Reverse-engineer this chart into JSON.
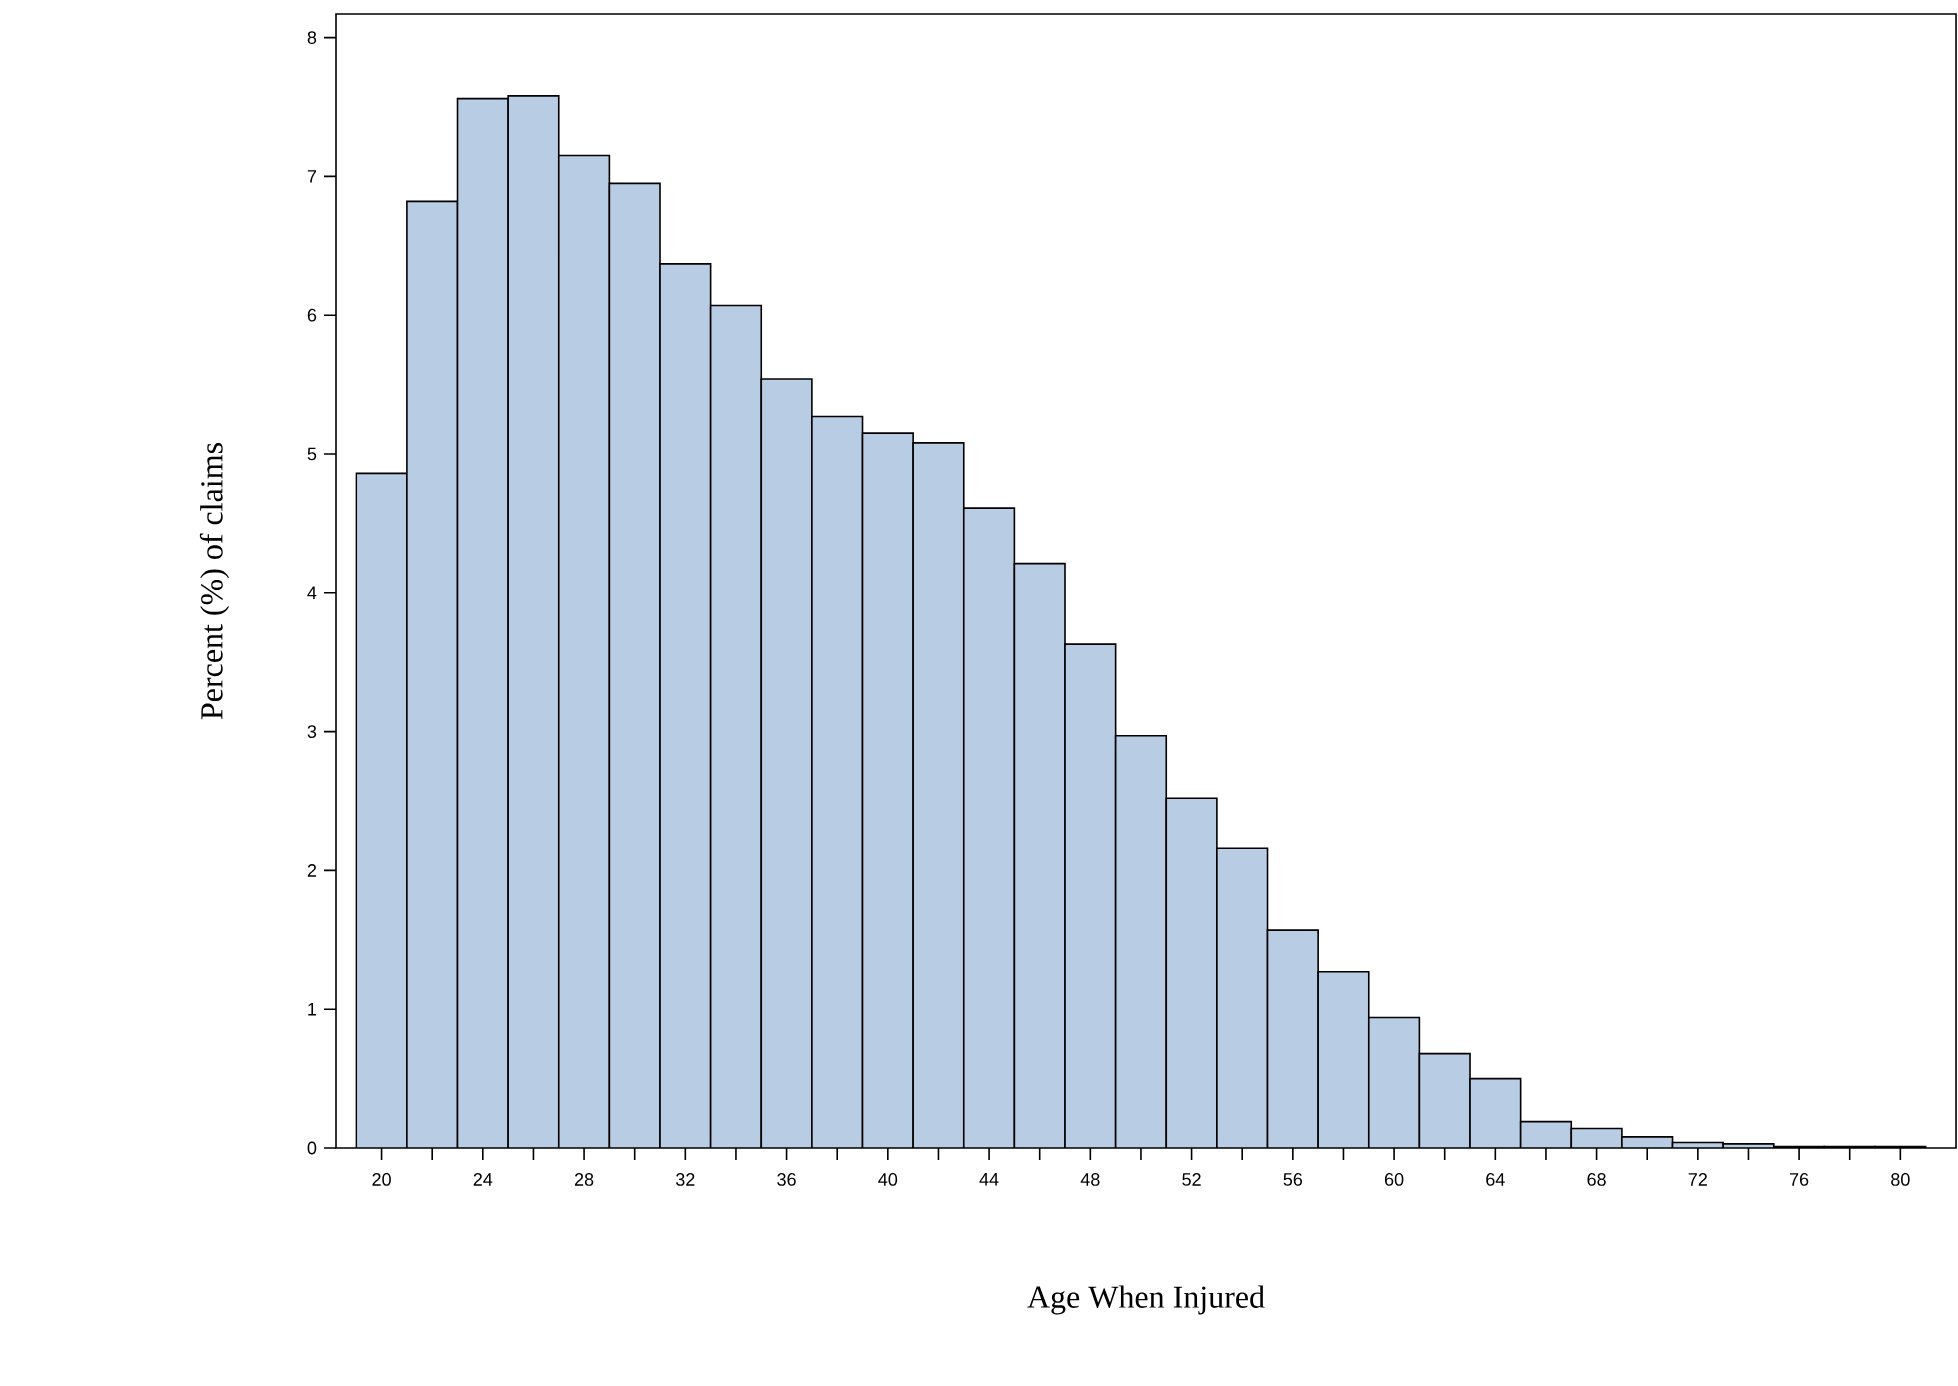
{
  "chart_data": {
    "type": "histogram",
    "xlabel": "Age When Injured",
    "ylabel": "Percent (%) of claims",
    "bins": [
      19,
      21,
      23,
      25,
      27,
      29,
      31,
      33,
      35,
      37,
      39,
      41,
      43,
      45,
      47,
      49,
      51,
      53,
      55,
      57,
      59,
      61,
      63,
      65,
      67,
      69,
      71,
      73,
      75,
      77,
      79,
      81
    ],
    "values": [
      4.86,
      6.82,
      7.56,
      7.58,
      7.15,
      6.95,
      6.37,
      6.07,
      5.54,
      5.27,
      5.15,
      5.08,
      4.61,
      4.21,
      3.63,
      2.97,
      2.52,
      2.16,
      1.57,
      1.27,
      0.94,
      0.68,
      0.5,
      0.19,
      0.14,
      0.08,
      0.04,
      0.03,
      0.01,
      0.01,
      0.01
    ],
    "color": "#b8cce4",
    "xlim": [
      18.2,
      82.2
    ],
    "ylim": [
      0,
      8.17
    ],
    "xticks": [
      20,
      {
        "value": 22,
        "label": null
      },
      24,
      {
        "value": 26,
        "label": null
      },
      28,
      {
        "value": 30,
        "label": null
      },
      32,
      {
        "value": 34,
        "label": null
      },
      36,
      {
        "value": 38,
        "label": null
      },
      40,
      {
        "value": 42,
        "label": null
      },
      44,
      {
        "value": 46,
        "label": null
      },
      48,
      {
        "value": 50,
        "label": null
      },
      52,
      {
        "value": 54,
        "label": null
      },
      56,
      {
        "value": 58,
        "label": null
      },
      60,
      {
        "value": 62,
        "label": null
      },
      64,
      {
        "value": 66,
        "label": null
      },
      68,
      {
        "value": 70,
        "label": null
      },
      72,
      {
        "value": 74,
        "label": null
      },
      76,
      {
        "value": 78,
        "label": null
      },
      80
    ],
    "yticks": [
      0,
      1,
      2,
      3,
      4,
      5,
      6,
      7,
      8
    ],
    "grid": false
  }
}
